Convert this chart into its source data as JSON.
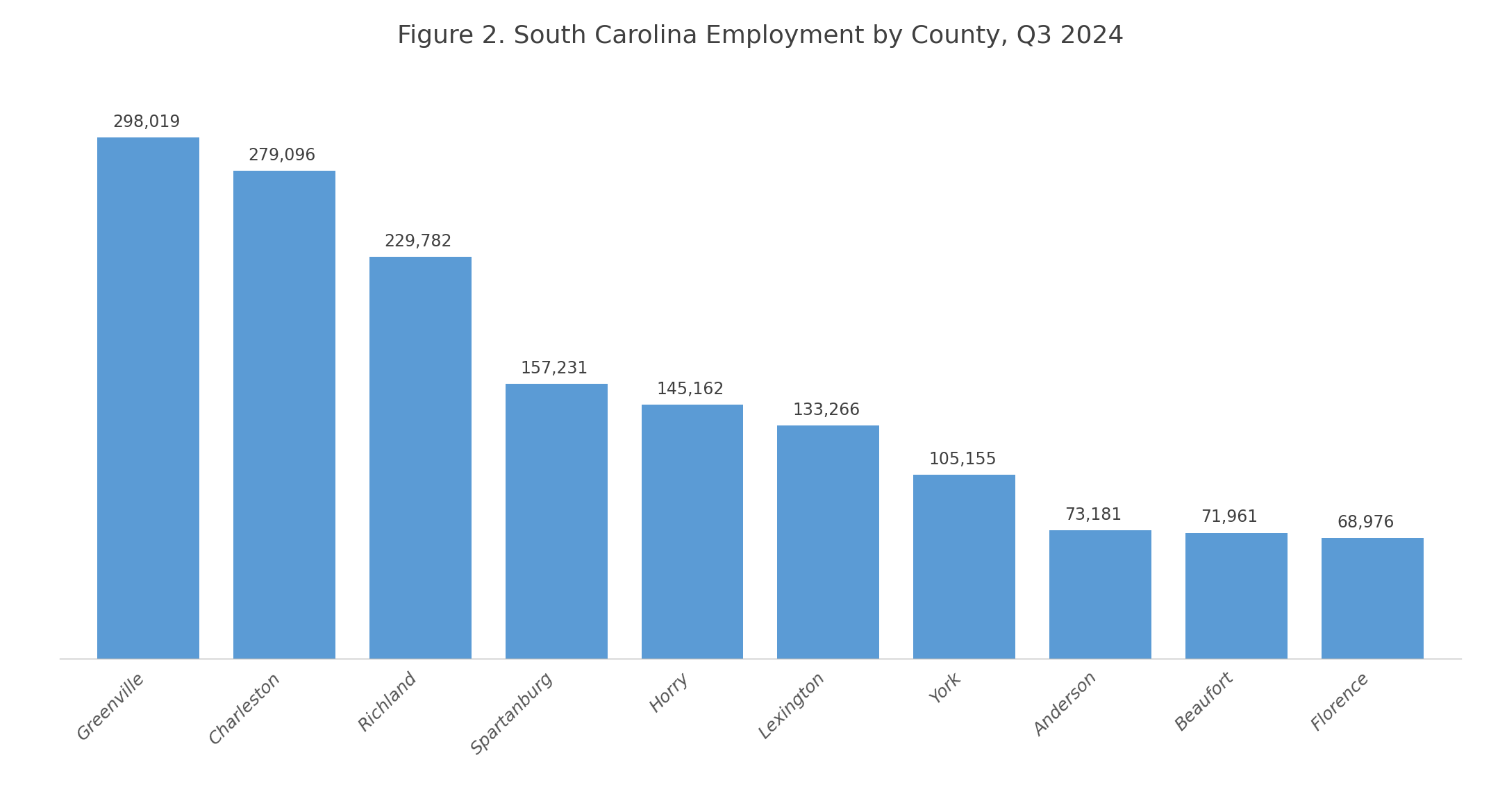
{
  "title": "Figure 2. South Carolina Employment by County, Q3 2024",
  "categories": [
    "Greenville",
    "Charleston",
    "Richland",
    "Spartanburg",
    "Horry",
    "Lexington",
    "York",
    "Anderson",
    "Beaufort",
    "Florence"
  ],
  "values": [
    298019,
    279096,
    229782,
    157231,
    145162,
    133266,
    105155,
    73181,
    71961,
    68976
  ],
  "labels": [
    "298,019",
    "279,096",
    "229,782",
    "157,231",
    "145,162",
    "133,266",
    "105,155",
    "73,181",
    "71,961",
    "68,976"
  ],
  "bar_color": "#5B9BD5",
  "background_color": "#FFFFFF",
  "title_fontsize": 26,
  "label_fontsize": 17,
  "tick_fontsize": 18,
  "ylim": [
    0,
    340000
  ],
  "bar_width": 0.75
}
